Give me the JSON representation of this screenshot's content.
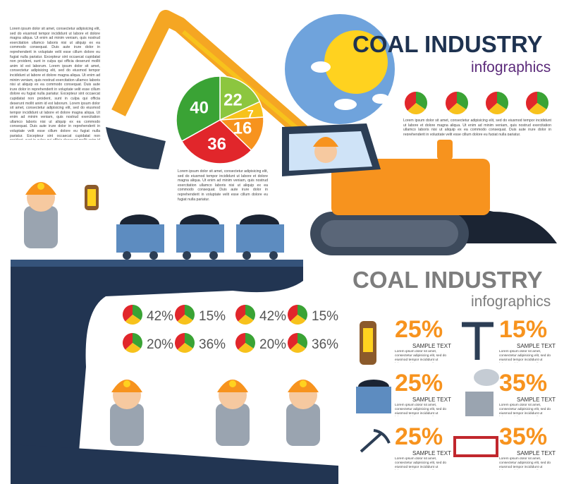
{
  "header": {
    "title": "COAL INDUSTRY",
    "subtitle": "infographics"
  },
  "intro_text": "Lorem ipsum dolor sit amet, consectetur adipisicing elit, sed do eiusmod tempor incididunt ut labore et dolore magna aliqua. Ut enim ad minim veniam, quis nostrud exercitation ullamco laboris nisi ut aliquip ex ea commodo consequat. Duis aute irure dolor in reprehenderit in voluptate velit esse cillum dolore eu fugiat nulla pariatur. Excepteur sint occaecat cupidatat non proident, sunt in culpa qui officia deserunt mollit anim id est laborum. Lorem ipsum dolor sit amet, consectetur adipisicing elit, sed do eiusmod tempor incididunt ut labore et dolore magna aliqua. Ut enim ad minim veniam, quis nostrud exercitation ullamco laboris nisi ut aliquip ex ea commodo consequat. Duis aute irure dolor in reprehenderit in voluptate velit esse cillum dolore eu fugiat nulla pariatur. Excepteur sint occaecat cupidatat non proident, sunt in culpa qui officia deserunt mollit anim id est laborum. Lorem ipsum dolor sit amet, consectetur adipisicing elit, sed do eiusmod tempor incididunt ut labore et dolore magna aliqua. Ut enim ad minim veniam, quis nostrud exercitation ullamco laboris nisi ut aliquip ex ea commodo consequat. Duis aute irure dolor in reprehenderit in voluptate velit esse cillum dolore eu fugiat nulla pariatur. Excepteur sint occaecat cupidatat non proident, sunt in culpa qui officia deserunt mollit anim id est laborum.",
  "pie": {
    "segments": [
      {
        "value": 22,
        "color": "#8cc63f"
      },
      {
        "value": 7,
        "color": "#f7c21c"
      },
      {
        "value": 16,
        "color": "#f7931e"
      },
      {
        "value": 36,
        "color": "#e1262b"
      },
      {
        "value": 40,
        "color": "#3aa335"
      }
    ],
    "caption": "Lorem ipsum dolor sit amet, consectetur adipisicing elit, sed do eiusmod tempor incididunt ut labore et dolore magna aliqua. Ut enim ad minim veniam, quis nostrud exercitation ullamco laboris nisi ut aliquip ex ea commodo consequat. Duis aute irure dolor in reprehenderit in voluptate velit esse cillum dolore eu fugiat nulla pariatur."
  },
  "top_right_text": "Lorem ipsum dolor sit amet, consectetur adipisicing elit, sed do eiusmod tempor incididunt ut labore et dolore magna aliqua. Ut enim ad minim veniam, quis nostrud exercitation ullamco laboris nisi ut aliquip ex ea commodo consequat. Duis aute irure dolor in reprehenderit in voluptate velit esse cillum dolore eu fugiat nulla pariatur.",
  "header2": {
    "title": "COAL INDUSTRY",
    "subtitle": "infographics"
  },
  "small_pie_labels": [
    "42%",
    "15%",
    "42%",
    "15%",
    "20%",
    "36%",
    "20%",
    "36%"
  ],
  "stats": [
    {
      "value": "25%",
      "label": "SAMPLE TEXT",
      "text": "Lorem ipsum dolor sit amet, consectetur adipisicing elit, sed do eiusmod tempor incididunt ut labore et dolore magna aliqua."
    },
    {
      "value": "15%",
      "label": "SAMPLE TEXT",
      "text": "Lorem ipsum dolor sit amet, consectetur adipisicing elit, sed do eiusmod tempor incididunt ut labore et dolore magna aliqua."
    },
    {
      "value": "25%",
      "label": "SAMPLE TEXT",
      "text": "Lorem ipsum dolor sit amet, consectetur adipisicing elit, sed do eiusmod tempor incididunt ut labore et dolore magna aliqua."
    },
    {
      "value": "35%",
      "label": "SAMPLE TEXT",
      "text": "Lorem ipsum dolor sit amet, consectetur adipisicing elit, sed do eiusmod tempor incididunt ut labore et dolore magna aliqua."
    },
    {
      "value": "25%",
      "label": "SAMPLE TEXT",
      "text": "Lorem ipsum dolor sit amet, consectetur adipisicing elit, sed do eiusmod tempor incididunt ut labore et dolore magna aliqua."
    },
    {
      "value": "35%",
      "label": "SAMPLE TEXT",
      "text": "Lorem ipsum dolor sit amet, consectetur adipisicing elit, sed do eiusmod tempor incididunt ut labore et dolore magna aliqua."
    }
  ]
}
